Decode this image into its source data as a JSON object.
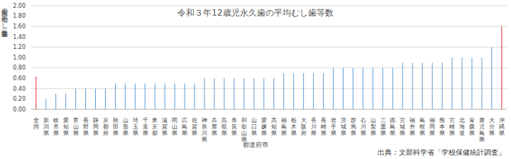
{
  "chart_data": {
    "type": "bar",
    "title": "令和３年12歳児永久歯の平均むし歯等数",
    "x_label": "都道府県",
    "y_label": "永久歯の平均むし歯等数（本）",
    "annotations": [
      "出典：文部科学省「学校保健統計調査」"
    ],
    "categories": [
      "全国",
      "新潟県",
      "岐阜県",
      "愛知県",
      "富山県",
      "長野県",
      "静岡県",
      "京都府",
      "秋田県",
      "山形県",
      "埼玉県",
      "千葉県",
      "東京都",
      "滋賀県",
      "岡山県",
      "広島県",
      "佐賀県",
      "神奈川県",
      "兵庫県",
      "鳥取県",
      "奈良県",
      "和歌山県",
      "山口県",
      "愛媛県",
      "高知県",
      "福島県",
      "栃木県",
      "大阪府",
      "香川県",
      "長崎県",
      "岩手県",
      "茨城県",
      "群馬県",
      "石川県",
      "山梨県",
      "三重県",
      "徳島県",
      "宮城県",
      "福井県",
      "島根県",
      "福岡県",
      "熊本県",
      "宮崎県",
      "北海道",
      "青森県",
      "鹿児島県",
      "大分県",
      "沖縄県"
    ],
    "values": [
      0.63,
      0.2,
      0.3,
      0.3,
      0.4,
      0.4,
      0.4,
      0.4,
      0.5,
      0.5,
      0.5,
      0.5,
      0.5,
      0.5,
      0.5,
      0.5,
      0.5,
      0.6,
      0.6,
      0.6,
      0.6,
      0.6,
      0.6,
      0.6,
      0.6,
      0.7,
      0.7,
      0.7,
      0.7,
      0.7,
      0.8,
      0.8,
      0.8,
      0.8,
      0.8,
      0.8,
      0.8,
      0.9,
      0.9,
      0.9,
      0.9,
      0.9,
      1.0,
      1.0,
      1.0,
      1.0,
      1.2,
      1.6
    ],
    "colors": [
      "#e8262a",
      "#5b9bd5",
      "#5b9bd5",
      "#5b9bd5",
      "#5b9bd5",
      "#5b9bd5",
      "#5b9bd5",
      "#5b9bd5",
      "#5b9bd5",
      "#5b9bd5",
      "#5b9bd5",
      "#5b9bd5",
      "#5b9bd5",
      "#5b9bd5",
      "#5b9bd5",
      "#5b9bd5",
      "#5b9bd5",
      "#5b9bd5",
      "#5b9bd5",
      "#5b9bd5",
      "#5b9bd5",
      "#5b9bd5",
      "#5b9bd5",
      "#5b9bd5",
      "#5b9bd5",
      "#5b9bd5",
      "#5b9bd5",
      "#5b9bd5",
      "#5b9bd5",
      "#5b9bd5",
      "#5b9bd5",
      "#5b9bd5",
      "#5b9bd5",
      "#5b9bd5",
      "#5b9bd5",
      "#5b9bd5",
      "#5b9bd5",
      "#5b9bd5",
      "#5b9bd5",
      "#5b9bd5",
      "#5b9bd5",
      "#5b9bd5",
      "#5b9bd5",
      "#5b9bd5",
      "#5b9bd5",
      "#5b9bd5",
      "#5b9bd5",
      "#e8262a"
    ],
    "ylim": [
      0,
      2
    ],
    "yticks": [
      {
        "value": 0,
        "label": "0.00"
      },
      {
        "value": 0.2,
        "label": "0.20"
      },
      {
        "value": 0.4,
        "label": "0.40"
      },
      {
        "value": 0.6,
        "label": "0.60"
      },
      {
        "value": 0.8,
        "label": "0.80"
      },
      {
        "value": 1,
        "label": "1.00"
      },
      {
        "value": 1.2,
        "label": "1.20"
      },
      {
        "value": 1.4,
        "label": "1.40"
      },
      {
        "value": 1.6,
        "label": "1.60"
      },
      {
        "value": 1.8,
        "label": "1.80"
      },
      {
        "value": 2,
        "label": "2.00"
      }
    ],
    "grid": true
  }
}
